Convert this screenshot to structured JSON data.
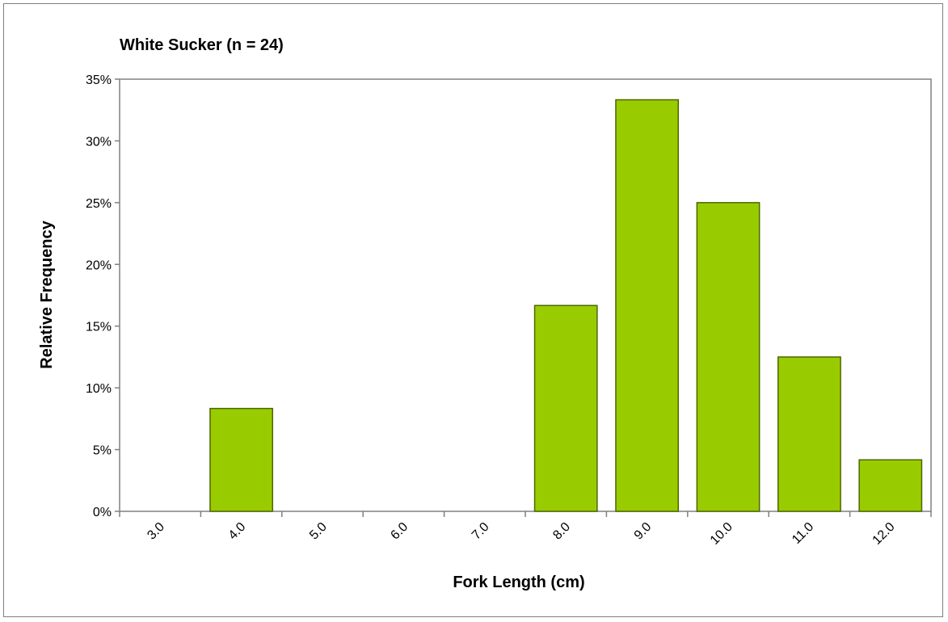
{
  "chart_data": {
    "type": "bar",
    "title": "White Sucker (n = 24)",
    "xlabel": "Fork Length (cm)",
    "ylabel": "Relative Frequency",
    "categories": [
      "3.0",
      "4.0",
      "5.0",
      "6.0",
      "7.0",
      "8.0",
      "9.0",
      "10.0",
      "11.0",
      "12.0"
    ],
    "values": [
      0,
      8.33,
      0,
      0,
      0,
      16.67,
      33.33,
      25.0,
      12.5,
      4.17
    ],
    "ylim": [
      0,
      35
    ],
    "yticks": [
      "0%",
      "5%",
      "10%",
      "15%",
      "20%",
      "25%",
      "30%",
      "35%"
    ],
    "grid": false,
    "legend": "none",
    "colors": {
      "bar_fill": "#99cc00",
      "bar_stroke": "#4d6600",
      "axis": "#808080"
    }
  }
}
